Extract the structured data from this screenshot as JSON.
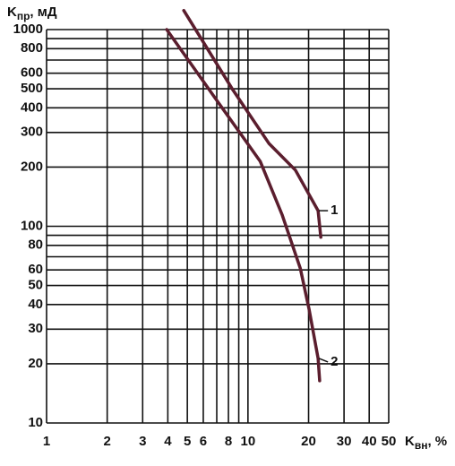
{
  "chart_data": {
    "type": "line",
    "x_label": {
      "symbol": "K",
      "subscript": "вн",
      "unit": ", %"
    },
    "y_label": {
      "symbol": "K",
      "subscript": "пр",
      "unit": ", мД"
    },
    "xscale": "log",
    "yscale": "log",
    "grid": true,
    "xlim": [
      1,
      50
    ],
    "ylim": [
      10,
      1000
    ],
    "xticks": [
      1,
      2,
      3,
      4,
      5,
      6,
      8,
      10,
      20,
      30,
      40,
      50
    ],
    "yticks": [
      10,
      20,
      30,
      40,
      50,
      60,
      80,
      100,
      200,
      300,
      400,
      500,
      600,
      800,
      1000
    ],
    "xgrid": [
      1,
      2,
      3,
      4,
      5,
      6,
      7,
      8,
      9,
      10,
      20,
      30,
      40,
      50
    ],
    "ygrid": [
      10,
      20,
      30,
      40,
      50,
      60,
      70,
      80,
      90,
      100,
      200,
      300,
      400,
      500,
      600,
      700,
      800,
      900,
      1000
    ],
    "series": [
      {
        "name": "1",
        "color": "#5b1e2e",
        "x": [
          4.8,
          8.4,
          12.7,
          17.2,
          22.3,
          23
        ],
        "values": [
          1250,
          495,
          264,
          193,
          120,
          88
        ]
      },
      {
        "name": "2",
        "color": "#5b1e2e",
        "x": [
          3.95,
          6.9,
          11.5,
          14.8,
          18.2,
          20.1,
          22.3,
          22.7
        ],
        "values": [
          1000,
          446,
          214,
          114,
          61,
          38,
          21.3,
          16.4
        ]
      }
    ]
  }
}
